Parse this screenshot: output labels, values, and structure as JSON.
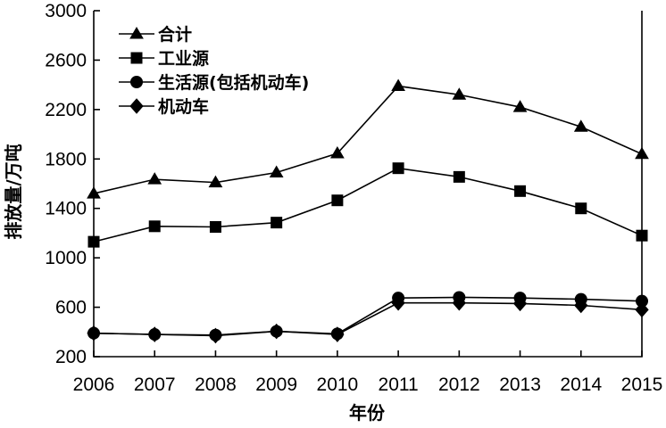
{
  "chart_data": {
    "type": "line",
    "x": [
      "2006",
      "2007",
      "2008",
      "2009",
      "2010",
      "2011",
      "2012",
      "2013",
      "2014",
      "2015"
    ],
    "series": [
      {
        "name": "合计",
        "marker": "triangle",
        "values": [
          1520,
          1635,
          1610,
          1690,
          1845,
          2390,
          2320,
          2220,
          2060,
          1840
        ]
      },
      {
        "name": "工业源",
        "marker": "square",
        "values": [
          1130,
          1255,
          1250,
          1285,
          1465,
          1725,
          1655,
          1540,
          1400,
          1180
        ]
      },
      {
        "name": "生活源(包括机动车)",
        "marker": "circle",
        "values": [
          390,
          380,
          375,
          405,
          385,
          675,
          680,
          675,
          665,
          650
        ]
      },
      {
        "name": "机动车",
        "marker": "diamond",
        "values": [
          390,
          380,
          370,
          405,
          380,
          635,
          635,
          630,
          615,
          580
        ]
      }
    ],
    "xlabel": "年份",
    "ylabel": "排放量/万吨",
    "ylim": [
      200,
      3000
    ],
    "yticks": [
      200,
      600,
      1000,
      1400,
      1800,
      2200,
      2600,
      3000
    ],
    "legend_position": "top-left",
    "grid": false
  }
}
